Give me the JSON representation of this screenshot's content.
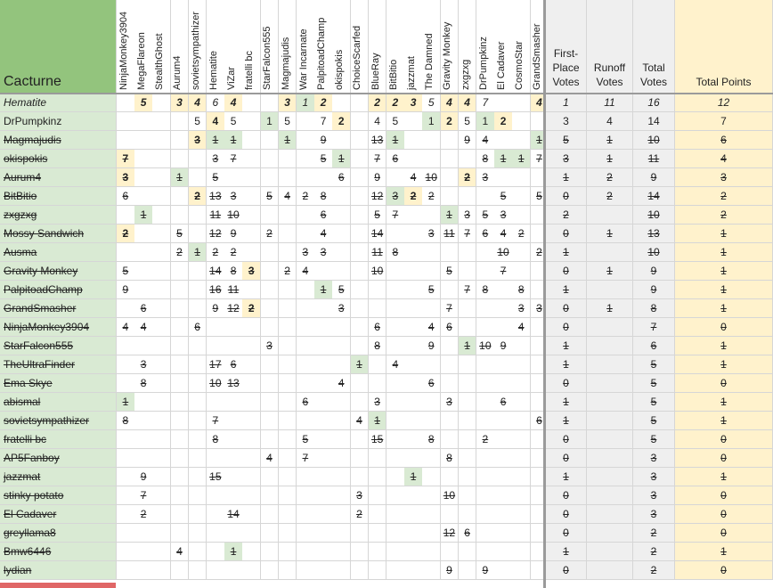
{
  "sheet": {
    "corner_label": "Cacturne",
    "columns": [
      "NinjaMonkey3904",
      "MegaFlareon",
      "StealthGhost",
      "Aurum4",
      "sovietsympathizer",
      "Hematite",
      "ViZar",
      "fratelli bc",
      "StarFalcon555",
      "Magmajudis",
      "War Incarnate",
      "PalpitoadChamp",
      "okispokis",
      "ChoiceScarfed",
      "BlueRay",
      "BitBitio",
      "jazzmat",
      "The Damned",
      "Gravity Monkey",
      "zxgzxg",
      "DrPumpkinz",
      "El Cadaver",
      "CosmoStar",
      "GrandSmasher"
    ],
    "stat_headers": [
      "First-Place Votes",
      "Runoff Votes",
      "Total Votes",
      "Total Points"
    ],
    "colors": {
      "green": "#d9ead3",
      "yellow": "#fff2cc",
      "header_green": "#93c47d",
      "grey": "#efefef",
      "bar": "#e06666"
    },
    "rows": [
      {
        "name": "Hematite",
        "style": "ital",
        "votes": [
          "",
          "5",
          "",
          "3",
          "4",
          "6",
          "4",
          "",
          "",
          "3",
          "1",
          "2",
          "",
          "",
          "2",
          "2",
          "3",
          "5",
          "4",
          "4",
          "7",
          "",
          "",
          "4"
        ],
        "green": [
          10
        ],
        "yellow": [
          1,
          3,
          4,
          6,
          9,
          11,
          14,
          15,
          16,
          18,
          19,
          23
        ],
        "stats": [
          "1",
          "11",
          "16",
          "12"
        ]
      },
      {
        "name": "DrPumpkinz",
        "style": "",
        "votes": [
          "",
          "",
          "",
          "",
          "5",
          "4",
          "5",
          "",
          "1",
          "5",
          "",
          "7",
          "2",
          "",
          "4",
          "5",
          "",
          "1",
          "2",
          "5",
          "1",
          "2",
          "",
          ""
        ],
        "green": [
          8,
          17,
          20
        ],
        "yellow": [
          5,
          12,
          18,
          21
        ],
        "stats": [
          "3",
          "4",
          "14",
          "7"
        ]
      },
      {
        "name": "Magmajudis",
        "style": "strike",
        "votes": [
          "",
          "",
          "",
          "",
          "3",
          "1",
          "1",
          "",
          "",
          "1",
          "",
          "9",
          "",
          "",
          "13",
          "1",
          "",
          "",
          "",
          "9",
          "4",
          "",
          "",
          "1"
        ],
        "green": [
          5,
          6,
          9,
          15,
          23
        ],
        "yellow": [
          4
        ],
        "stats": [
          "5",
          "1",
          "10",
          "6"
        ]
      },
      {
        "name": "okispokis",
        "style": "strike",
        "votes": [
          "7",
          "",
          "",
          "",
          "",
          "3",
          "7",
          "",
          "",
          "",
          "",
          "5",
          "1",
          "",
          "7",
          "6",
          "",
          "",
          "",
          "",
          "8",
          "1",
          "1",
          "7"
        ],
        "green": [
          12,
          21,
          22
        ],
        "yellow": [
          0
        ],
        "stats": [
          "3",
          "1",
          "11",
          "4"
        ]
      },
      {
        "name": "Aurum4",
        "style": "strike",
        "votes": [
          "3",
          "",
          "",
          "1",
          "",
          "5",
          "",
          "",
          "",
          "",
          "",
          "",
          "6",
          "",
          "9",
          "",
          "4",
          "10",
          "",
          "2",
          "3",
          "",
          "",
          ""
        ],
        "green": [
          3
        ],
        "yellow": [
          0,
          19
        ],
        "stats": [
          "1",
          "2",
          "9",
          "3"
        ]
      },
      {
        "name": "BitBitio",
        "style": "strike",
        "votes": [
          "6",
          "",
          "",
          "",
          "2",
          "13",
          "3",
          "",
          "5",
          "4",
          "2",
          "8",
          "",
          "",
          "12",
          "3",
          "2",
          "2",
          "",
          "",
          "",
          "5",
          "",
          "5"
        ],
        "green": [
          15
        ],
        "yellow": [
          4,
          16
        ],
        "stats": [
          "0",
          "2",
          "14",
          "2"
        ]
      },
      {
        "name": "zxgzxg",
        "style": "strike",
        "votes": [
          "",
          "1",
          "",
          "",
          "",
          "11",
          "10",
          "",
          "",
          "",
          "",
          "6",
          "",
          "",
          "5",
          "7",
          "",
          "",
          "1",
          "3",
          "5",
          "3",
          "",
          ""
        ],
        "green": [
          1,
          18
        ],
        "yellow": [],
        "stats": [
          "2",
          "",
          "10",
          "2"
        ]
      },
      {
        "name": "Mossy Sandwich",
        "style": "strike",
        "votes": [
          "2",
          "",
          "",
          "5",
          "",
          "12",
          "9",
          "",
          "2",
          "",
          "",
          "4",
          "",
          "",
          "14",
          "",
          "",
          "3",
          "11",
          "7",
          "6",
          "4",
          "2",
          ""
        ],
        "green": [],
        "yellow": [
          0
        ],
        "stats": [
          "0",
          "1",
          "13",
          "1"
        ]
      },
      {
        "name": "Ausma",
        "style": "strike",
        "votes": [
          "",
          "",
          "",
          "2",
          "1",
          "2",
          "2",
          "",
          "",
          "",
          "3",
          "3",
          "",
          "",
          "11",
          "8",
          "",
          "",
          "",
          "",
          "",
          "10",
          "",
          "2"
        ],
        "green": [
          4
        ],
        "yellow": [],
        "stats": [
          "1",
          "",
          "10",
          "1"
        ]
      },
      {
        "name": "Gravity Monkey",
        "style": "strike",
        "votes": [
          "5",
          "",
          "",
          "",
          "",
          "14",
          "8",
          "3",
          "",
          "2",
          "4",
          "",
          "",
          "",
          "10",
          "",
          "",
          "",
          "5",
          "",
          "",
          "7",
          "",
          ""
        ],
        "green": [],
        "yellow": [
          7
        ],
        "stats": [
          "0",
          "1",
          "9",
          "1"
        ]
      },
      {
        "name": "PalpitoadChamp",
        "style": "strike",
        "votes": [
          "9",
          "",
          "",
          "",
          "",
          "16",
          "11",
          "",
          "",
          "",
          "",
          "1",
          "5",
          "",
          "",
          "",
          "",
          "5",
          "",
          "7",
          "8",
          "",
          "8",
          ""
        ],
        "green": [
          11
        ],
        "yellow": [],
        "stats": [
          "1",
          "",
          "9",
          "1"
        ]
      },
      {
        "name": "GrandSmasher",
        "style": "strike",
        "votes": [
          "",
          "6",
          "",
          "",
          "",
          "9",
          "12",
          "2",
          "",
          "",
          "",
          "",
          "3",
          "",
          "",
          "",
          "",
          "",
          "7",
          "",
          "",
          "",
          "3",
          "3"
        ],
        "green": [],
        "yellow": [
          7
        ],
        "stats": [
          "0",
          "1",
          "8",
          "1"
        ]
      },
      {
        "name": "NinjaMonkey3904",
        "style": "strike",
        "votes": [
          "4",
          "4",
          "",
          "",
          "6",
          "",
          "",
          "",
          "",
          "",
          "",
          "",
          "",
          "",
          "6",
          "",
          "",
          "4",
          "6",
          "",
          "",
          "",
          "4",
          ""
        ],
        "green": [],
        "yellow": [],
        "stats": [
          "0",
          "",
          "7",
          "0"
        ]
      },
      {
        "name": "StarFalcon555",
        "style": "strike",
        "votes": [
          "",
          "",
          "",
          "",
          "",
          "",
          "",
          "",
          "3",
          "",
          "",
          "",
          "",
          "",
          "8",
          "",
          "",
          "9",
          "",
          "1",
          "10",
          "9",
          "",
          ""
        ],
        "green": [
          19
        ],
        "yellow": [],
        "stats": [
          "1",
          "",
          "6",
          "1"
        ]
      },
      {
        "name": "TheUltraFinder",
        "style": "strike",
        "votes": [
          "",
          "3",
          "",
          "",
          "",
          "17",
          "6",
          "",
          "",
          "",
          "",
          "",
          "",
          "1",
          "",
          "4",
          "",
          "",
          "",
          "",
          "",
          "",
          "",
          ""
        ],
        "green": [
          13
        ],
        "yellow": [],
        "stats": [
          "1",
          "",
          "5",
          "1"
        ]
      },
      {
        "name": "Ema Skye",
        "style": "strike",
        "votes": [
          "",
          "8",
          "",
          "",
          "",
          "10",
          "13",
          "",
          "",
          "",
          "",
          "",
          "4",
          "",
          "",
          "",
          "",
          "6",
          "",
          "",
          "",
          "",
          "",
          ""
        ],
        "green": [],
        "yellow": [],
        "stats": [
          "0",
          "",
          "5",
          "0"
        ]
      },
      {
        "name": "abismal",
        "style": "strike",
        "votes": [
          "1",
          "",
          "",
          "",
          "",
          "",
          "",
          "",
          "",
          "",
          "6",
          "",
          "",
          "",
          "3",
          "",
          "",
          "",
          "3",
          "",
          "",
          "6",
          "",
          ""
        ],
        "green": [
          0
        ],
        "yellow": [],
        "stats": [
          "1",
          "",
          "5",
          "1"
        ]
      },
      {
        "name": "sovietsympathizer",
        "style": "strike",
        "votes": [
          "8",
          "",
          "",
          "",
          "",
          "7",
          "",
          "",
          "",
          "",
          "",
          "",
          "",
          "4",
          "1",
          "",
          "",
          "",
          "",
          "",
          "",
          "",
          "",
          "6"
        ],
        "green": [
          14
        ],
        "yellow": [],
        "stats": [
          "1",
          "",
          "5",
          "1"
        ]
      },
      {
        "name": "fratelli bc",
        "style": "strike",
        "votes": [
          "",
          "",
          "",
          "",
          "",
          "8",
          "",
          "",
          "",
          "",
          "5",
          "",
          "",
          "",
          "15",
          "",
          "",
          "8",
          "",
          "",
          "2",
          "",
          "",
          ""
        ],
        "green": [],
        "yellow": [],
        "stats": [
          "0",
          "",
          "5",
          "0"
        ]
      },
      {
        "name": "AP5Fanboy",
        "style": "strike",
        "votes": [
          "",
          "",
          "",
          "",
          "",
          "",
          "",
          "",
          "4",
          "",
          "7",
          "",
          "",
          "",
          "",
          "",
          "",
          "",
          "8",
          "",
          "",
          "",
          "",
          ""
        ],
        "green": [],
        "yellow": [],
        "stats": [
          "0",
          "",
          "3",
          "0"
        ]
      },
      {
        "name": "jazzmat",
        "style": "strike",
        "votes": [
          "",
          "9",
          "",
          "",
          "",
          "15",
          "",
          "",
          "",
          "",
          "",
          "",
          "",
          "",
          "",
          "",
          "1",
          "",
          "",
          "",
          "",
          "",
          "",
          ""
        ],
        "green": [
          16
        ],
        "yellow": [],
        "stats": [
          "1",
          "",
          "3",
          "1"
        ]
      },
      {
        "name": "stinky potato",
        "style": "strike",
        "votes": [
          "",
          "7",
          "",
          "",
          "",
          "",
          "",
          "",
          "",
          "",
          "",
          "",
          "",
          "3",
          "",
          "",
          "",
          "",
          "10",
          "",
          "",
          "",
          "",
          ""
        ],
        "green": [],
        "yellow": [],
        "stats": [
          "0",
          "",
          "3",
          "0"
        ]
      },
      {
        "name": "El Cadaver",
        "style": "strike",
        "votes": [
          "",
          "2",
          "",
          "",
          "",
          "",
          "14",
          "",
          "",
          "",
          "",
          "",
          "",
          "2",
          "",
          "",
          "",
          "",
          "",
          "",
          "",
          "",
          "",
          ""
        ],
        "green": [],
        "yellow": [],
        "stats": [
          "0",
          "",
          "3",
          "0"
        ]
      },
      {
        "name": "greyllama8",
        "style": "strike",
        "votes": [
          "",
          "",
          "",
          "",
          "",
          "",
          "",
          "",
          "",
          "",
          "",
          "",
          "",
          "",
          "",
          "",
          "",
          "",
          "12",
          "6",
          "",
          "",
          "",
          ""
        ],
        "green": [],
        "yellow": [],
        "stats": [
          "0",
          "",
          "2",
          "0"
        ]
      },
      {
        "name": "Bmw6446",
        "style": "strike",
        "votes": [
          "",
          "",
          "",
          "4",
          "",
          "",
          "1",
          "",
          "",
          "",
          "",
          "",
          "",
          "",
          "",
          "",
          "",
          "",
          "",
          "",
          "",
          "",
          "",
          ""
        ],
        "green": [
          6
        ],
        "yellow": [],
        "stats": [
          "1",
          "",
          "2",
          "1"
        ]
      },
      {
        "name": "lydian",
        "style": "strike",
        "votes": [
          "",
          "",
          "",
          "",
          "",
          "",
          "",
          "",
          "",
          "",
          "",
          "",
          "",
          "",
          "",
          "",
          "",
          "",
          "9",
          "",
          "9",
          "",
          "",
          ""
        ],
        "green": [],
        "yellow": [],
        "stats": [
          "0",
          "",
          "2",
          "0"
        ]
      }
    ]
  }
}
